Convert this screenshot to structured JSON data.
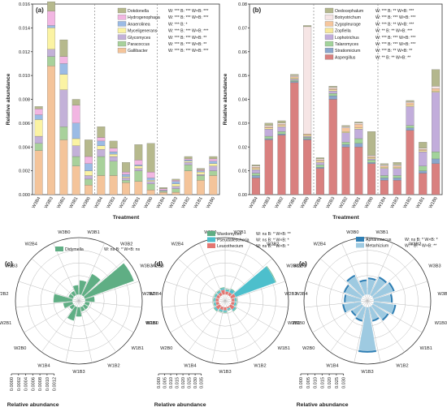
{
  "chart_data": [
    {
      "id": "a",
      "panel_label": "(a)",
      "type": "bar",
      "stacked": true,
      "xlabel": "Treatment",
      "ylabel": "Relative abundance",
      "ylim": [
        0,
        0.016
      ],
      "yticks": [
        "0.000",
        "0.002",
        "0.004",
        "0.006",
        "0.008",
        "0.010",
        "0.012",
        "0.014",
        "0.016"
      ],
      "categories": [
        "W3B4",
        "W3B3",
        "W3B2",
        "W3B1",
        "W3B0",
        "W2B4",
        "W2B3",
        "W2B2",
        "W2B1",
        "W2B0",
        "W1B4",
        "W1B3",
        "W1B2",
        "W1B1",
        "W1B0"
      ],
      "group_dividers_after": [
        4,
        9
      ],
      "series": [
        {
          "name": "Gallibacter",
          "color": "#f4c49a",
          "stats": "W: *** B: *** W×B: ***",
          "values": [
            0.0037,
            0.0108,
            0.0046,
            0.0024,
            0.0008,
            0.0016,
            0.0016,
            0.001,
            0.0011,
            0.0004,
            0.0002,
            0.0002,
            0.002,
            0.0012,
            0.0016
          ]
        },
        {
          "name": "Paracoccus",
          "color": "#a8d19b",
          "stats": "W: *** B: *** W×B: **",
          "values": [
            0.0006,
            0.0008,
            0.0011,
            0.0008,
            0.0005,
            0.0016,
            0.0012,
            0.0002,
            0.0009,
            0.0005,
            0.0001,
            0.0003,
            0.0005,
            0.0004,
            0.0004
          ]
        },
        {
          "name": "Glycomyces",
          "color": "#c3b1d8",
          "stats": "W: *** B: *** W×B: **",
          "values": [
            0.0006,
            0.0006,
            0.0031,
            0.0009,
            0.0003,
            0.0006,
            0.0004,
            0.0002,
            0.0002,
            0.0002,
            0.0001,
            0.0002,
            0.0002,
            0.0001,
            0.0004
          ]
        },
        {
          "name": "Myceligenerans",
          "color": "#fbf3a3",
          "stats": "W: *** B: *** W×B: ***",
          "values": [
            0.0014,
            0.0018,
            0.0013,
            0.0006,
            0.0004,
            0.0003,
            0.0002,
            0.0001,
            0.0002,
            0.0001,
            0.0,
            0.0002,
            0.0001,
            0.0002,
            0.0002
          ]
        },
        {
          "name": "Anaerolinea",
          "color": "#9bbbe5",
          "stats": "W: *** B: *",
          "values": [
            0.0004,
            0.0002,
            0.0009,
            0.0013,
            0.0006,
            0.0004,
            0.0002,
            0.0002,
            0.0001,
            0.0002,
            0.0,
            0.0002,
            0.0001,
            0.0001,
            0.0002
          ]
        },
        {
          "name": "Hydrogenophaga",
          "color": "#f2b6e2",
          "stats": "W: *** B: *** W×B: ***",
          "values": [
            0.0005,
            0.0012,
            0.0006,
            0.0015,
            0.0006,
            0.0003,
            0.0003,
            0.0002,
            0.0004,
            0.0005,
            0.0001,
            0.0001,
            0.0001,
            0.0001,
            0.0002
          ]
        },
        {
          "name": "Dokdonella",
          "color": "#b6b98d",
          "stats": "W: *** B: *** W×B: ***",
          "values": [
            0.0002,
            0.0008,
            0.0014,
            0.0005,
            0.0014,
            0.0009,
            0.0006,
            0.0008,
            0.0013,
            0.0024,
            0.0001,
            0.0001,
            0.0002,
            0.0001,
            0.0002
          ]
        }
      ]
    },
    {
      "id": "b",
      "panel_label": "(b)",
      "type": "bar",
      "stacked": true,
      "xlabel": "Treatment",
      "ylabel": "Relative abundance",
      "ylim": [
        0,
        0.08
      ],
      "yticks": [
        "0.00",
        "0.01",
        "0.02",
        "0.03",
        "0.04",
        "0.05",
        "0.06",
        "0.07",
        "0.08"
      ],
      "categories": [
        "W3B4",
        "W3B3",
        "W3B2",
        "W3B1",
        "W3B0",
        "W2B4",
        "W2B3",
        "W2B2",
        "W2B1",
        "W2B0",
        "W1B4",
        "W1B3",
        "W1B2",
        "W1B1",
        "W1B0"
      ],
      "group_dividers_after": [
        4,
        9
      ],
      "series": [
        {
          "name": "Aspergillus",
          "color": "#d9807f",
          "stats": "W: ** B: ** W×B: **",
          "values": [
            0.007,
            0.023,
            0.025,
            0.047,
            0.023,
            0.011,
            0.04,
            0.02,
            0.02,
            0.013,
            0.006,
            0.006,
            0.027,
            0.009,
            0.013
          ]
        },
        {
          "name": "Stratiomicium",
          "color": "#8aa6cc",
          "stats": "W: *** B: ** W×B: **",
          "values": [
            0.001,
            0.0005,
            0.0005,
            0.0005,
            0.0005,
            0.0005,
            0.0015,
            0.001,
            0.0015,
            0.0005,
            0.001,
            0.001,
            0.001,
            0.001,
            0.002
          ]
        },
        {
          "name": "Talaromyces",
          "color": "#a2d39a",
          "stats": "W: *** B: *** W×B: ***",
          "values": [
            0.001,
            0.001,
            0.001,
            0.0005,
            0.0005,
            0.001,
            0.001,
            0.001,
            0.002,
            0.001,
            0.001,
            0.001,
            0.001,
            0.002,
            0.003
          ]
        },
        {
          "name": "Lophotrichus",
          "color": "#c2addb",
          "stats": "W: *** B: *** W×B: ***",
          "values": [
            0.0015,
            0.003,
            0.002,
            0.0005,
            0.0005,
            0.001,
            0.001,
            0.004,
            0.004,
            0.0005,
            0.003,
            0.003,
            0.008,
            0.006,
            0.025
          ]
        },
        {
          "name": "Zopfiella",
          "color": "#f7e89a",
          "stats": "W: ** B: ** W×B: ***",
          "values": [
            0.0005,
            0.0005,
            0.0005,
            0.0005,
            0.0005,
            0.0005,
            0.0005,
            0.0005,
            0.0005,
            0.0005,
            0.0005,
            0.0005,
            0.0005,
            0.0005,
            0.0005
          ]
        },
        {
          "name": "Zygopleurage",
          "color": "#f6c69d",
          "stats": "W: *** B: ** W×B: ***",
          "values": [
            0.0005,
            0.0005,
            0.0005,
            0.0005,
            0.0005,
            0.0005,
            0.0005,
            0.0015,
            0.0015,
            0.0005,
            0.0005,
            0.0005,
            0.001,
            0.0005,
            0.001
          ]
        },
        {
          "name": "Botryotrichum",
          "color": "#f6e5e5",
          "stats": "W: *** B: *** W×B: ***",
          "values": [
            0.0005,
            0.0005,
            0.0005,
            0.0005,
            0.045,
            0.0005,
            0.0005,
            0.0005,
            0.0005,
            0.0005,
            0.0005,
            0.0005,
            0.0005,
            0.0005,
            0.001
          ]
        },
        {
          "name": "Oedocephalum",
          "color": "#b4b78d",
          "stats": "W: *** B: ** W×B: ***",
          "values": [
            0.0005,
            0.001,
            0.001,
            0.0005,
            0.0005,
            0.0005,
            0.0005,
            0.0005,
            0.0005,
            0.01,
            0.0005,
            0.001,
            0.0005,
            0.0025,
            0.007
          ]
        }
      ]
    },
    {
      "id": "c",
      "panel_label": "(c)",
      "type": "polar-bar",
      "xlabel": "Relative abundance",
      "rmax": 0.0012,
      "radial_ticks": [
        "0.0000",
        "0.0002",
        "0.0004",
        "0.0006",
        "0.0008",
        "0.0010",
        "0.0012"
      ],
      "categories": [
        "W3B1",
        "W3B2",
        "W3B3",
        "W3B4",
        "W1B0",
        "W1B1",
        "W1B2",
        "W1B3",
        "W1B4",
        "W2B0",
        "W2B1",
        "W2B2",
        "W2B3",
        "W2B4",
        "W3B0"
      ],
      "series": [
        {
          "name": "Didymella",
          "color": "#5fae84",
          "stats": "W: ns B: * W×B: ns",
          "values": [
            0.0003,
            0.0005,
            0.0011,
            0.0002,
            0.0001,
            0.0001,
            0.0001,
            0.0002,
            0.0003,
            0.0001,
            0.0002,
            0.0004,
            0.0001,
            0.0001,
            0.0002
          ]
        }
      ]
    },
    {
      "id": "d",
      "panel_label": "(d)",
      "type": "polar-bar",
      "stacked": true,
      "xlabel": "Relative abundance",
      "rmax": 0.035,
      "radial_ticks": [
        "0.000",
        "0.005",
        "0.010",
        "0.015",
        "0.020",
        "0.025",
        "0.030",
        "0.035"
      ],
      "categories": [
        "W3B1",
        "W3B2",
        "W3B3",
        "W3B4",
        "W1B0",
        "W1B1",
        "W1B2",
        "W1B3",
        "W1B4",
        "W2B0",
        "W2B1",
        "W2B2",
        "W2B3",
        "W2B4",
        "W3B0"
      ],
      "series": [
        {
          "name": "Leucothecium",
          "color": "#e37772",
          "stats": "W: ns B: * W×B: *",
          "values": [
            0.002,
            0.002,
            0.003,
            0.002,
            0.002,
            0.003,
            0.001,
            0.002,
            0.002,
            0.003,
            0.002,
            0.002,
            0.002,
            0.002,
            0.003
          ]
        },
        {
          "name": "Pseudallescheria",
          "color": "#4dbfcc",
          "stats": "W: ns B: * W×B: *",
          "values": [
            0.001,
            0.002,
            0.026,
            0.001,
            0.001,
            0.001,
            0.001,
            0.001,
            0.001,
            0.001,
            0.001,
            0.001,
            0.001,
            0.001,
            0.001
          ]
        },
        {
          "name": "Wardomyces",
          "color": "#5fae84",
          "stats": "W: ns B: * W×B: **",
          "values": [
            0.0005,
            0.0005,
            0.0005,
            0.0005,
            0.0005,
            0.0005,
            0.0005,
            0.0005,
            0.0005,
            0.0005,
            0.0005,
            0.0005,
            0.0005,
            0.0005,
            0.0005
          ]
        }
      ]
    },
    {
      "id": "e",
      "panel_label": "(e)",
      "type": "polar-bar",
      "stacked": true,
      "xlabel": "Relative abundance",
      "rmax": 0.03,
      "radial_ticks": [
        "0.000",
        "0.005",
        "0.010",
        "0.015",
        "0.020",
        "0.025",
        "0.030"
      ],
      "categories": [
        "W3B1",
        "W3B2",
        "W3B3",
        "W3B4",
        "W1B0",
        "W1B1",
        "W1B2",
        "W1B3",
        "W1B4",
        "W2B0",
        "W2B1",
        "W2B2",
        "W2B3",
        "W2B4",
        "W3B0"
      ],
      "series": [
        {
          "name": "Metarhizium",
          "color": "#9ecae1",
          "stats": "W: * B: * W×B: **",
          "values": [
            0.008,
            0.01,
            0.011,
            0.009,
            0.011,
            0.009,
            0.007,
            0.023,
            0.007,
            0.006,
            0.009,
            0.008,
            0.009,
            0.011,
            0.007
          ]
        },
        {
          "name": "Aphanoascus",
          "color": "#2f7fb4",
          "stats": "W: ns B: * W×B: *",
          "values": [
            0.001,
            0.001,
            0.001,
            0.001,
            0.001,
            0.001,
            0.001,
            0.001,
            0.001,
            0.001,
            0.001,
            0.001,
            0.001,
            0.001,
            0.001
          ]
        }
      ]
    }
  ]
}
